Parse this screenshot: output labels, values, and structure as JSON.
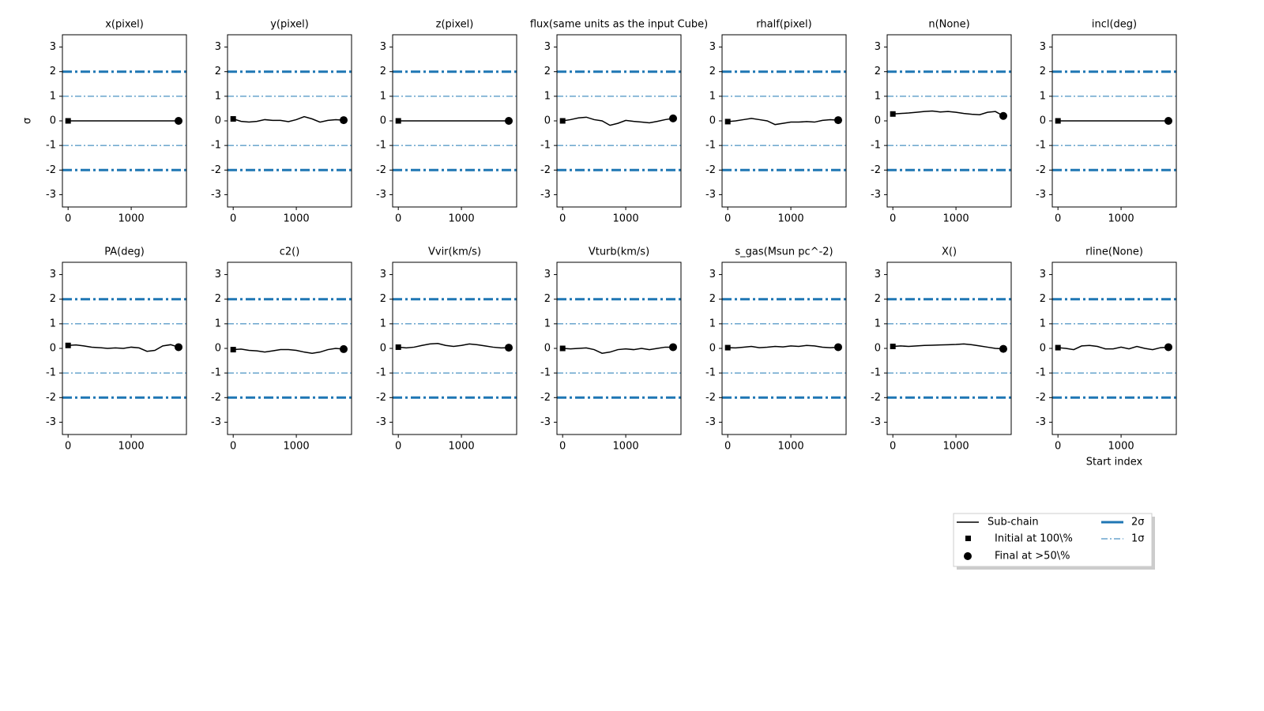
{
  "chart_data": [
    {
      "type": "line",
      "title": "x(pixel)",
      "ylabel": "σ",
      "x": [
        0,
        125,
        250,
        375,
        500,
        625,
        750,
        875,
        1000,
        1125,
        1250,
        1375,
        1500,
        1625,
        1750
      ],
      "series": [
        {
          "name": "Sub-chain",
          "color": "#000000",
          "values": [
            0,
            0,
            0,
            0,
            0,
            0,
            0,
            0,
            0,
            0,
            0,
            0,
            0,
            0,
            0
          ]
        }
      ],
      "xlim": [
        -90,
        1875
      ],
      "ylim": [
        -3.5,
        3.5
      ],
      "xticks": [
        0,
        1000
      ],
      "yticks": [
        -3,
        -2,
        -1,
        0,
        1,
        2,
        3
      ]
    },
    {
      "type": "line",
      "title": "y(pixel)",
      "x": [
        0,
        125,
        250,
        375,
        500,
        625,
        750,
        875,
        1000,
        1125,
        1250,
        1375,
        1500,
        1625,
        1750
      ],
      "series": [
        {
          "name": "Sub-chain",
          "color": "#000000",
          "values": [
            0.08,
            -0.02,
            -0.05,
            -0.02,
            0.05,
            0.02,
            0.02,
            -0.03,
            0.05,
            0.17,
            0.08,
            -0.05,
            0.02,
            0.05,
            0.03
          ]
        }
      ],
      "xlim": [
        -90,
        1875
      ],
      "ylim": [
        -3.5,
        3.5
      ],
      "xticks": [
        0,
        1000
      ],
      "yticks": [
        -3,
        -2,
        -1,
        0,
        1,
        2,
        3
      ]
    },
    {
      "type": "line",
      "title": "z(pixel)",
      "x": [
        0,
        125,
        250,
        375,
        500,
        625,
        750,
        875,
        1000,
        1125,
        1250,
        1375,
        1500,
        1625,
        1750
      ],
      "series": [
        {
          "name": "Sub-chain",
          "color": "#000000",
          "values": [
            0,
            0,
            0,
            0,
            0,
            0,
            0,
            0,
            0,
            0,
            0,
            0,
            0,
            0,
            0
          ]
        }
      ],
      "xlim": [
        -90,
        1875
      ],
      "ylim": [
        -3.5,
        3.5
      ],
      "xticks": [
        0,
        1000
      ],
      "yticks": [
        -3,
        -2,
        -1,
        0,
        1,
        2,
        3
      ]
    },
    {
      "type": "line",
      "title": "flux(same units as the input Cube)",
      "x": [
        0,
        125,
        250,
        375,
        500,
        625,
        750,
        875,
        1000,
        1125,
        1250,
        1375,
        1500,
        1625,
        1750
      ],
      "series": [
        {
          "name": "Sub-chain",
          "color": "#000000",
          "values": [
            0,
            0.05,
            0.12,
            0.15,
            0.05,
            0,
            -0.18,
            -0.1,
            0.02,
            -0.02,
            -0.05,
            -0.08,
            -0.02,
            0.05,
            0.1
          ]
        }
      ],
      "xlim": [
        -90,
        1875
      ],
      "ylim": [
        -3.5,
        3.5
      ],
      "xticks": [
        0,
        1000
      ],
      "yticks": [
        -3,
        -2,
        -1,
        0,
        1,
        2,
        3
      ]
    },
    {
      "type": "line",
      "title": "rhalf(pixel)",
      "x": [
        0,
        125,
        250,
        375,
        500,
        625,
        750,
        875,
        1000,
        1125,
        1250,
        1375,
        1500,
        1625,
        1750
      ],
      "series": [
        {
          "name": "Sub-chain",
          "color": "#000000",
          "values": [
            -0.03,
            0,
            0.05,
            0.1,
            0.05,
            0,
            -0.15,
            -0.1,
            -0.05,
            -0.05,
            -0.03,
            -0.05,
            0.02,
            0.05,
            0.03
          ]
        }
      ],
      "xlim": [
        -90,
        1875
      ],
      "ylim": [
        -3.5,
        3.5
      ],
      "xticks": [
        0,
        1000
      ],
      "yticks": [
        -3,
        -2,
        -1,
        0,
        1,
        2,
        3
      ]
    },
    {
      "type": "line",
      "title": "n(None)",
      "x": [
        0,
        125,
        250,
        375,
        500,
        625,
        750,
        875,
        1000,
        1125,
        1250,
        1375,
        1500,
        1625,
        1750
      ],
      "series": [
        {
          "name": "Sub-chain",
          "color": "#000000",
          "values": [
            0.28,
            0.3,
            0.32,
            0.35,
            0.38,
            0.4,
            0.36,
            0.38,
            0.35,
            0.3,
            0.27,
            0.25,
            0.35,
            0.38,
            0.2
          ]
        }
      ],
      "xlim": [
        -90,
        1875
      ],
      "ylim": [
        -3.5,
        3.5
      ],
      "xticks": [
        0,
        1000
      ],
      "yticks": [
        -3,
        -2,
        -1,
        0,
        1,
        2,
        3
      ]
    },
    {
      "type": "line",
      "title": "incl(deg)",
      "x": [
        0,
        125,
        250,
        375,
        500,
        625,
        750,
        875,
        1000,
        1125,
        1250,
        1375,
        1500,
        1625,
        1750
      ],
      "series": [
        {
          "name": "Sub-chain",
          "color": "#000000",
          "values": [
            0,
            0,
            0,
            0,
            0,
            0,
            0,
            0,
            0,
            0,
            0,
            0,
            0,
            0,
            0
          ]
        }
      ],
      "xlim": [
        -90,
        1875
      ],
      "ylim": [
        -3.5,
        3.5
      ],
      "xticks": [
        0,
        1000
      ],
      "yticks": [
        -3,
        -2,
        -1,
        0,
        1,
        2,
        3
      ]
    },
    {
      "type": "line",
      "title": "PA(deg)",
      "x": [
        0,
        125,
        250,
        375,
        500,
        625,
        750,
        875,
        1000,
        1125,
        1250,
        1375,
        1500,
        1625,
        1750
      ],
      "series": [
        {
          "name": "Sub-chain",
          "color": "#000000",
          "values": [
            0.12,
            0.14,
            0.1,
            0.05,
            0.03,
            0,
            0.02,
            0,
            0.05,
            0.02,
            -0.12,
            -0.08,
            0.1,
            0.15,
            0.05
          ]
        }
      ],
      "xlim": [
        -90,
        1875
      ],
      "ylim": [
        -3.5,
        3.5
      ],
      "xticks": [
        0,
        1000
      ],
      "yticks": [
        -3,
        -2,
        -1,
        0,
        1,
        2,
        3
      ]
    },
    {
      "type": "line",
      "title": "c2()",
      "x": [
        0,
        125,
        250,
        375,
        500,
        625,
        750,
        875,
        1000,
        1125,
        1250,
        1375,
        1500,
        1625,
        1750
      ],
      "series": [
        {
          "name": "Sub-chain",
          "color": "#000000",
          "values": [
            -0.05,
            -0.03,
            -0.08,
            -0.1,
            -0.15,
            -0.1,
            -0.05,
            -0.05,
            -0.08,
            -0.15,
            -0.2,
            -0.15,
            -0.05,
            0,
            -0.03
          ]
        }
      ],
      "xlim": [
        -90,
        1875
      ],
      "ylim": [
        -3.5,
        3.5
      ],
      "xticks": [
        0,
        1000
      ],
      "yticks": [
        -3,
        -2,
        -1,
        0,
        1,
        2,
        3
      ]
    },
    {
      "type": "line",
      "title": "Vvir(km/s)",
      "x": [
        0,
        125,
        250,
        375,
        500,
        625,
        750,
        875,
        1000,
        1125,
        1250,
        1375,
        1500,
        1625,
        1750
      ],
      "series": [
        {
          "name": "Sub-chain",
          "color": "#000000",
          "values": [
            0.05,
            0.02,
            0.05,
            0.12,
            0.18,
            0.2,
            0.12,
            0.08,
            0.12,
            0.18,
            0.15,
            0.1,
            0.05,
            0.02,
            0.03
          ]
        }
      ],
      "xlim": [
        -90,
        1875
      ],
      "ylim": [
        -3.5,
        3.5
      ],
      "xticks": [
        0,
        1000
      ],
      "yticks": [
        -3,
        -2,
        -1,
        0,
        1,
        2,
        3
      ]
    },
    {
      "type": "line",
      "title": "Vturb(km/s)",
      "x": [
        0,
        125,
        250,
        375,
        500,
        625,
        750,
        875,
        1000,
        1125,
        1250,
        1375,
        1500,
        1625,
        1750
      ],
      "series": [
        {
          "name": "Sub-chain",
          "color": "#000000",
          "values": [
            0,
            -0.02,
            0,
            0.02,
            -0.05,
            -0.2,
            -0.15,
            -0.05,
            -0.02,
            -0.05,
            0,
            -0.05,
            0,
            0.05,
            0.05
          ]
        }
      ],
      "xlim": [
        -90,
        1875
      ],
      "ylim": [
        -3.5,
        3.5
      ],
      "xticks": [
        0,
        1000
      ],
      "yticks": [
        -3,
        -2,
        -1,
        0,
        1,
        2,
        3
      ]
    },
    {
      "type": "line",
      "title": "s_gas(Msun pc^-2)",
      "x": [
        0,
        125,
        250,
        375,
        500,
        625,
        750,
        875,
        1000,
        1125,
        1250,
        1375,
        1500,
        1625,
        1750
      ],
      "series": [
        {
          "name": "Sub-chain",
          "color": "#000000",
          "values": [
            0.03,
            0.02,
            0.05,
            0.08,
            0.03,
            0.05,
            0.08,
            0.06,
            0.1,
            0.08,
            0.12,
            0.1,
            0.05,
            0.03,
            0.05
          ]
        }
      ],
      "xlim": [
        -90,
        1875
      ],
      "ylim": [
        -3.5,
        3.5
      ],
      "xticks": [
        0,
        1000
      ],
      "yticks": [
        -3,
        -2,
        -1,
        0,
        1,
        2,
        3
      ]
    },
    {
      "type": "line",
      "title": "X()",
      "x": [
        0,
        125,
        250,
        375,
        500,
        625,
        750,
        875,
        1000,
        1125,
        1250,
        1375,
        1500,
        1625,
        1750
      ],
      "series": [
        {
          "name": "Sub-chain",
          "color": "#000000",
          "values": [
            0.08,
            0.1,
            0.08,
            0.1,
            0.12,
            0.13,
            0.14,
            0.15,
            0.16,
            0.18,
            0.15,
            0.1,
            0.05,
            0,
            -0.02
          ]
        }
      ],
      "xlim": [
        -90,
        1875
      ],
      "ylim": [
        -3.5,
        3.5
      ],
      "xticks": [
        0,
        1000
      ],
      "yticks": [
        -3,
        -2,
        -1,
        0,
        1,
        2,
        3
      ]
    },
    {
      "type": "line",
      "title": "rline(None)",
      "xlabel": "Start index",
      "x": [
        0,
        125,
        250,
        375,
        500,
        625,
        750,
        875,
        1000,
        1125,
        1250,
        1375,
        1500,
        1625,
        1750
      ],
      "series": [
        {
          "name": "Sub-chain",
          "color": "#000000",
          "values": [
            0.03,
            0,
            -0.05,
            0.1,
            0.12,
            0.08,
            -0.02,
            -0.02,
            0.05,
            -0.02,
            0.08,
            0,
            -0.05,
            0.03,
            0.05
          ]
        }
      ],
      "xlim": [
        -90,
        1875
      ],
      "ylim": [
        -3.5,
        3.5
      ],
      "xticks": [
        0,
        1000
      ],
      "yticks": [
        -3,
        -2,
        -1,
        0,
        1,
        2,
        3
      ]
    }
  ],
  "markers": {
    "initial": "Initial at 100\\%",
    "final": "Final at >50\\%"
  },
  "reference_lines": [
    {
      "name": "2σ",
      "color": "#1f77b4",
      "values": [
        2,
        -2
      ]
    },
    {
      "name": "1σ",
      "color": "#1f77b4",
      "values": [
        1,
        -1
      ]
    }
  ]
}
